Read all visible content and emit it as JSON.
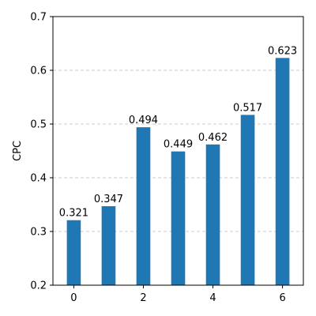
{
  "chart_data": {
    "type": "bar",
    "x": [
      0,
      1,
      2,
      3,
      4,
      5,
      6
    ],
    "values": [
      0.321,
      0.347,
      0.494,
      0.449,
      0.462,
      0.517,
      0.623
    ],
    "data_labels": [
      "0.321",
      "0.347",
      "0.494",
      "0.449",
      "0.462",
      "0.517",
      "0.623"
    ],
    "xticks": [
      0,
      2,
      4,
      6
    ],
    "xtick_labels": [
      "0",
      "2",
      "4",
      "6"
    ],
    "yticks": [
      0.2,
      0.3,
      0.4,
      0.5,
      0.6,
      0.7
    ],
    "ytick_labels": [
      "0.2",
      "0.3",
      "0.4",
      "0.5",
      "0.6",
      "0.7"
    ],
    "xlim": [
      -0.6,
      6.6
    ],
    "ylim": [
      0.2,
      0.7
    ],
    "xlabel": "",
    "ylabel": "CPC",
    "title": "",
    "grid": "y-dashed",
    "bar_color": "#1f77b4",
    "grid_color": "#cccccc"
  }
}
